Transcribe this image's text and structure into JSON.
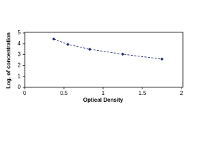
{
  "chart_data": {
    "type": "line",
    "xlabel": "Optical Density",
    "ylabel": "Log. of concentration",
    "x": [
      0.37,
      0.55,
      0.83,
      1.25,
      1.75
    ],
    "values": [
      4.45,
      3.95,
      3.5,
      3.05,
      2.6
    ],
    "color": "#1f2a6e",
    "dashed": true,
    "xlim": [
      0,
      2
    ],
    "xticks": [
      0,
      0.5,
      1,
      1.5,
      2
    ],
    "ylim": [
      0,
      5
    ],
    "yticks": [
      0,
      1,
      2,
      3,
      4,
      5
    ]
  }
}
